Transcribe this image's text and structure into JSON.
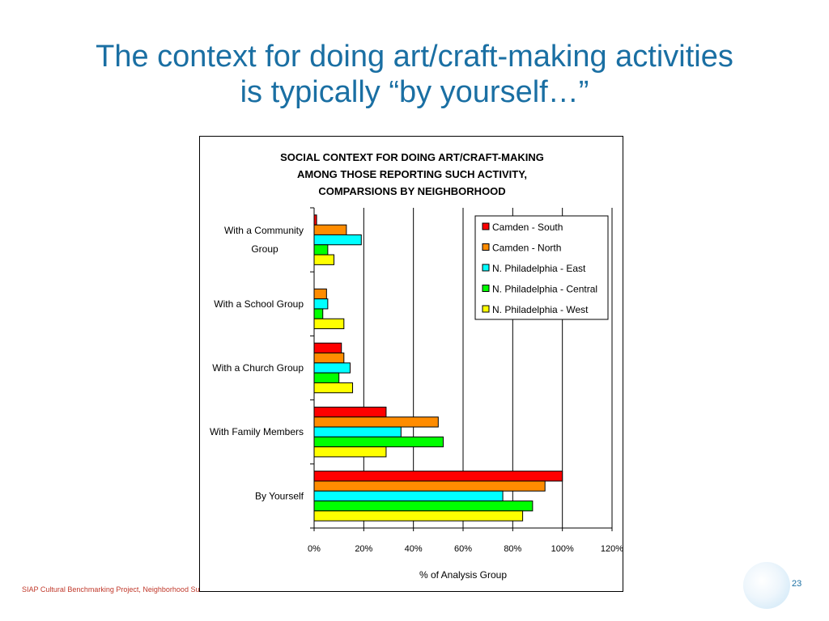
{
  "slide": {
    "title_line1": "The context for doing art/craft-making activities",
    "title_line2": "is typically “by yourself…”",
    "footer": "SIAP Cultural Benchmarking Project, Neighborhood Survey",
    "page_number": "23"
  },
  "colors": {
    "title": "#1a6fa3",
    "footer": "#c0392b"
  },
  "chart_data": {
    "type": "bar",
    "orientation": "horizontal",
    "title_lines": [
      "SOCIAL CONTEXT FOR DOING ART/CRAFT-MAKING",
      "AMONG THOSE REPORTING SUCH ACTIVITY,",
      "COMPARSIONS BY NEIGHBORHOOD"
    ],
    "categories": [
      [
        "With a Community",
        "Group"
      ],
      [
        "With a School Group"
      ],
      [
        "With a Church Group"
      ],
      [
        "With Family  Members"
      ],
      [
        "By  Yourself"
      ]
    ],
    "series": [
      {
        "name": "Camden - South",
        "color": "#ff0000",
        "values": [
          1,
          0,
          11,
          29,
          100
        ]
      },
      {
        "name": "Camden - North",
        "color": "#ff8c00",
        "values": [
          13,
          5,
          12,
          50,
          93
        ]
      },
      {
        "name": "N. Philadelphia - East",
        "color": "#00ffff",
        "values": [
          19,
          5.5,
          14.5,
          35,
          76
        ]
      },
      {
        "name": "N. Philadelphia - Central",
        "color": "#00ff00",
        "values": [
          5.5,
          3.5,
          10,
          52,
          88
        ]
      },
      {
        "name": "N. Philadelphia - West",
        "color": "#ffff00",
        "values": [
          8,
          12,
          15.5,
          29,
          84
        ]
      }
    ],
    "xlim": [
      0,
      120
    ],
    "xticks": [
      "0%",
      "20%",
      "40%",
      "60%",
      "80%",
      "100%",
      "120%"
    ],
    "xlabel": "%  of Analysis Group",
    "ylabel": "",
    "grid": "vertical",
    "legend_position": "top-right"
  }
}
